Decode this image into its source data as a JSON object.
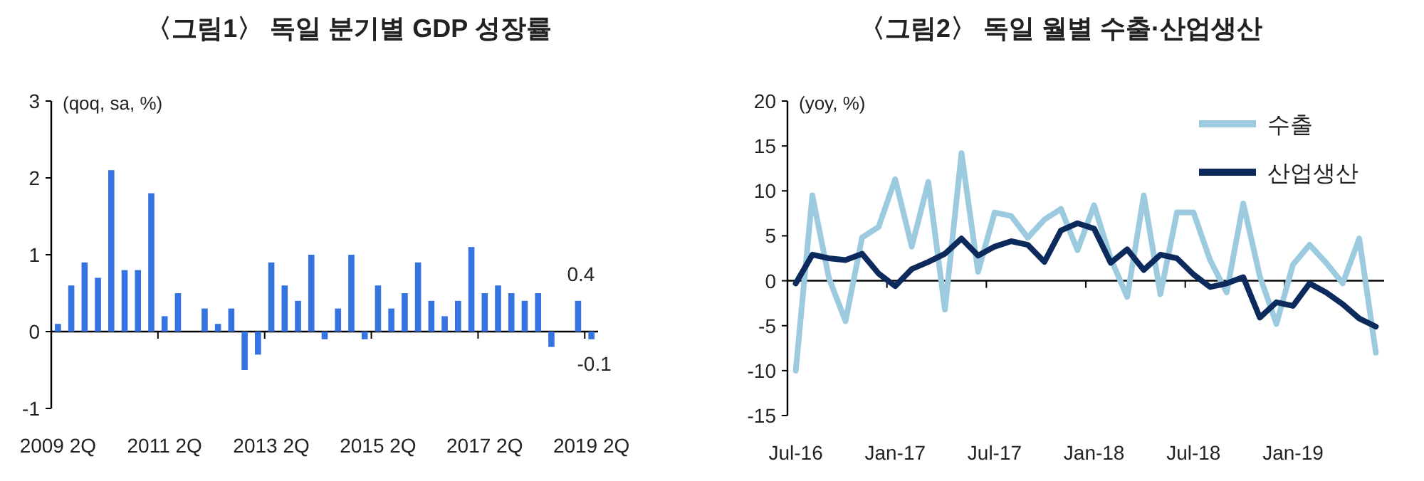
{
  "chart_data": [
    {
      "type": "bar",
      "title": "〈그림1〉 독일 분기별 GDP 성장률",
      "ylabel": "(qoq, sa, %)",
      "categories": [
        "2009 2Q",
        null,
        null,
        null,
        null,
        null,
        null,
        null,
        "2011 2Q",
        null,
        null,
        null,
        null,
        null,
        null,
        null,
        "2013 2Q",
        null,
        null,
        null,
        null,
        null,
        null,
        null,
        "2015 2Q",
        null,
        null,
        null,
        null,
        null,
        null,
        null,
        "2017 2Q",
        null,
        null,
        null,
        null,
        null,
        null,
        null,
        "2019 2Q"
      ],
      "values": [
        0.1,
        0.6,
        0.9,
        0.7,
        2.1,
        0.8,
        0.8,
        1.8,
        0.2,
        0.5,
        0.0,
        0.3,
        0.1,
        0.3,
        -0.5,
        -0.3,
        0.9,
        0.6,
        0.4,
        1.0,
        -0.1,
        0.3,
        1.0,
        -0.1,
        0.6,
        0.3,
        0.5,
        0.9,
        0.4,
        0.2,
        0.4,
        1.1,
        0.5,
        0.6,
        0.5,
        0.4,
        0.5,
        -0.2,
        0.0,
        0.4,
        -0.1
      ],
      "value_labels": [
        null,
        null,
        null,
        null,
        null,
        null,
        null,
        null,
        null,
        null,
        null,
        null,
        null,
        null,
        null,
        null,
        null,
        null,
        null,
        null,
        null,
        null,
        null,
        null,
        null,
        null,
        null,
        null,
        null,
        null,
        null,
        null,
        null,
        null,
        null,
        null,
        null,
        null,
        null,
        "0.4",
        "-0.1"
      ],
      "color": "#3574e0",
      "ylim": [
        -1,
        3
      ],
      "yticks": [
        -1,
        0,
        1,
        2,
        3
      ],
      "legend": false
    },
    {
      "type": "line",
      "title": "〈그림2〉 독일 월별 수출·산업생산",
      "ylabel": "(yoy, %)",
      "categories": [
        "Jul-16",
        null,
        null,
        null,
        null,
        null,
        "Jan-17",
        null,
        null,
        null,
        null,
        null,
        "Jul-17",
        null,
        null,
        null,
        null,
        null,
        "Jan-18",
        null,
        null,
        null,
        null,
        null,
        "Jul-18",
        null,
        null,
        null,
        null,
        null,
        "Jan-19",
        null,
        null,
        null,
        null,
        null
      ],
      "series": [
        {
          "name": "수출",
          "color": "#9ccbe0",
          "values": [
            -10,
            9.5,
            0.3,
            -4.5,
            4.8,
            6,
            11.3,
            3.8,
            11,
            -3.2,
            14.2,
            1,
            7.6,
            7.2,
            4.8,
            6.8,
            8,
            3.4,
            8.4,
            2.5,
            -1.8,
            9.5,
            -1.5,
            7.6,
            7.6,
            2.3,
            -1.3,
            8.6,
            0.5,
            -4.8,
            1.8,
            4,
            2,
            -0.3,
            4.7,
            -8
          ]
        },
        {
          "name": "산업생산",
          "color": "#0c2a5c",
          "values": [
            -0.3,
            2.9,
            2.5,
            2.3,
            3,
            0.8,
            -0.6,
            1.3,
            2.1,
            3,
            4.7,
            2.8,
            3.8,
            4.4,
            4,
            2.1,
            5.6,
            6.4,
            5.8,
            2,
            3.5,
            1.2,
            2.9,
            2.5,
            0.7,
            -0.7,
            -0.3,
            0.4,
            -4.1,
            -2.4,
            -2.8,
            -0.3,
            -1.3,
            -2.6,
            -4.2,
            -5.1
          ]
        }
      ],
      "ylim": [
        -15,
        20
      ],
      "yticks": [
        -15,
        -10,
        -5,
        0,
        5,
        10,
        15,
        20
      ],
      "legend": "top right",
      "marker": "none",
      "line_style": "solid"
    }
  ]
}
